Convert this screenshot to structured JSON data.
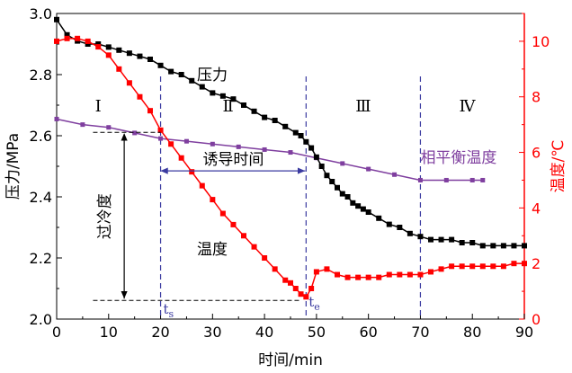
{
  "chart_data": {
    "type": "line",
    "xlabel": "时间/min",
    "ylabel_left": "压力/MPa",
    "ylabel_right": "温度/℃",
    "xlim": [
      0,
      90
    ],
    "ylim_left": [
      2.0,
      3.0
    ],
    "ylim_right": [
      0,
      11
    ],
    "x_ticks": [
      "0",
      "10",
      "20",
      "30",
      "40",
      "50",
      "60",
      "70",
      "80",
      "90"
    ],
    "y_left_ticks": [
      "2.0",
      "2.2",
      "2.4",
      "2.6",
      "2.8",
      "3.0"
    ],
    "y_right_ticks": [
      "0",
      "2",
      "4",
      "6",
      "8",
      "10"
    ],
    "colors": {
      "pressure": "#000000",
      "temperature": "#ff0000",
      "equilibrium": "#7f3f9f",
      "stage_line": "#3a3aa0",
      "right_axis": "#ff0000"
    },
    "series": [
      {
        "name": "压力",
        "axis": "left",
        "color": "#000000",
        "marker": "square",
        "x": [
          0,
          2,
          4,
          6,
          8,
          10,
          12,
          14,
          16,
          18,
          20,
          22,
          24,
          26,
          28,
          30,
          32,
          34,
          36,
          38,
          40,
          42,
          44,
          46,
          47,
          48,
          49,
          50,
          51,
          52,
          53,
          54,
          55,
          56,
          57,
          58,
          59,
          60,
          62,
          64,
          66,
          68,
          70,
          72,
          74,
          76,
          78,
          80,
          82,
          84,
          86,
          88,
          90
        ],
        "y": [
          2.98,
          2.93,
          2.91,
          2.9,
          2.9,
          2.89,
          2.88,
          2.87,
          2.86,
          2.85,
          2.83,
          2.81,
          2.8,
          2.78,
          2.76,
          2.74,
          2.73,
          2.72,
          2.7,
          2.68,
          2.66,
          2.65,
          2.63,
          2.61,
          2.6,
          2.58,
          2.56,
          2.53,
          2.5,
          2.47,
          2.45,
          2.43,
          2.41,
          2.4,
          2.38,
          2.37,
          2.36,
          2.35,
          2.33,
          2.31,
          2.3,
          2.28,
          2.27,
          2.26,
          2.26,
          2.26,
          2.25,
          2.25,
          2.24,
          2.24,
          2.24,
          2.24,
          2.24
        ]
      },
      {
        "name": "温度",
        "axis": "right",
        "color": "#ff0000",
        "marker": "square",
        "x": [
          0,
          2,
          4,
          6,
          8,
          10,
          12,
          14,
          16,
          18,
          20,
          22,
          24,
          26,
          28,
          30,
          32,
          34,
          36,
          38,
          40,
          42,
          44,
          45,
          46,
          47,
          48,
          49,
          50,
          52,
          54,
          56,
          58,
          60,
          62,
          64,
          66,
          68,
          70,
          72,
          74,
          76,
          78,
          80,
          82,
          84,
          86,
          88,
          90
        ],
        "y": [
          10.0,
          10.1,
          10.1,
          10.0,
          9.8,
          9.5,
          9.0,
          8.5,
          8.0,
          7.5,
          6.8,
          6.3,
          5.8,
          5.3,
          4.8,
          4.3,
          3.8,
          3.4,
          3.0,
          2.6,
          2.2,
          1.8,
          1.4,
          1.3,
          1.1,
          0.9,
          0.8,
          1.1,
          1.7,
          1.8,
          1.6,
          1.5,
          1.5,
          1.5,
          1.5,
          1.6,
          1.6,
          1.6,
          1.6,
          1.7,
          1.8,
          1.9,
          1.9,
          1.9,
          1.9,
          1.9,
          1.9,
          2.0,
          2.0
        ]
      },
      {
        "name": "相平衡温度",
        "axis": "right",
        "color": "#7f3f9f",
        "marker": "square",
        "x": [
          0,
          5,
          10,
          15,
          20,
          25,
          30,
          35,
          40,
          45,
          50,
          55,
          60,
          65,
          70,
          75,
          80,
          82
        ],
        "y": [
          7.2,
          7.0,
          6.9,
          6.7,
          6.5,
          6.4,
          6.3,
          6.2,
          6.1,
          6.0,
          5.8,
          5.6,
          5.4,
          5.2,
          5.0,
          5.0,
          5.0,
          5.0
        ]
      }
    ],
    "stage_lines_x": [
      20,
      48,
      70
    ],
    "stages": [
      {
        "label": "Ⅰ",
        "x": 8,
        "y_left": 2.68
      },
      {
        "label": "Ⅱ",
        "x": 33,
        "y_left": 2.68
      },
      {
        "label": "Ⅲ",
        "x": 59,
        "y_left": 2.68
      },
      {
        "label": "Ⅳ",
        "x": 79,
        "y_left": 2.68
      }
    ],
    "annotations": {
      "pressure_label": "压力",
      "temperature_label": "温度",
      "equilibrium_label": "相平衡温度",
      "induction_time_label": "诱导时间",
      "subcooling_label": "过冷度",
      "ts_label": "t",
      "ts_sub": "s",
      "te_label": "t",
      "te_sub": "e",
      "induction_from_x": 20,
      "induction_to_x": 48,
      "induction_y_left": 2.485,
      "subcooling_x": 13,
      "subcooling_top_temp": 6.72,
      "subcooling_bottom_temp": 0.67
    }
  }
}
